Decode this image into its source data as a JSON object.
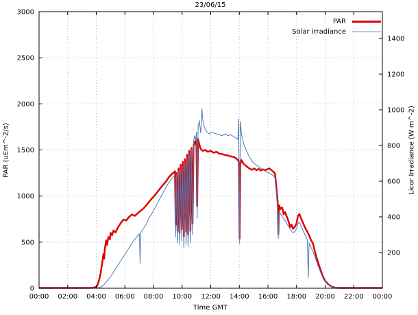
{
  "chart_data": {
    "type": "line",
    "title": "23/06/15",
    "xlabel": "Time GMT",
    "ylabel": "PAR (uEm^-2/s)",
    "y2label": "Licor Irradiance (W m^-2)",
    "grid": true,
    "legend_position": "top-right-inside",
    "background": "#ffffff",
    "grid_color": "#bbbbbb",
    "border_color": "#000000",
    "x_range": [
      0,
      24
    ],
    "y_range": [
      0,
      3000
    ],
    "y2_range": [
      0,
      1550
    ],
    "x_ticks": [
      {
        "v": 0,
        "label": "00:00"
      },
      {
        "v": 2,
        "label": "02:00"
      },
      {
        "v": 4,
        "label": "04:00"
      },
      {
        "v": 6,
        "label": "06:00"
      },
      {
        "v": 8,
        "label": "08:00"
      },
      {
        "v": 10,
        "label": "10:00"
      },
      {
        "v": 12,
        "label": "12:00"
      },
      {
        "v": 14,
        "label": "14:00"
      },
      {
        "v": 16,
        "label": "16:00"
      },
      {
        "v": 18,
        "label": "18:00"
      },
      {
        "v": 20,
        "label": "20:00"
      },
      {
        "v": 22,
        "label": "22:00"
      },
      {
        "v": 24,
        "label": "00:00"
      }
    ],
    "y_ticks": [
      0,
      500,
      1000,
      1500,
      2000,
      2500,
      3000
    ],
    "y2_ticks": [
      200,
      400,
      600,
      800,
      1000,
      1200,
      1400
    ],
    "series": [
      {
        "name": "PAR",
        "color": "#dd0000",
        "width": 2.5,
        "axis": "y1",
        "points": [
          [
            0,
            4
          ],
          [
            0.5,
            4
          ],
          [
            1,
            4
          ],
          [
            1.5,
            4
          ],
          [
            2,
            4
          ],
          [
            2.5,
            4
          ],
          [
            3,
            4
          ],
          [
            3.5,
            4
          ],
          [
            3.8,
            6
          ],
          [
            4,
            15
          ],
          [
            4.1,
            40
          ],
          [
            4.2,
            90
          ],
          [
            4.3,
            160
          ],
          [
            4.4,
            260
          ],
          [
            4.5,
            370
          ],
          [
            4.55,
            320
          ],
          [
            4.6,
            430
          ],
          [
            4.7,
            520
          ],
          [
            4.75,
            470
          ],
          [
            4.85,
            555
          ],
          [
            4.95,
            530
          ],
          [
            5,
            600
          ],
          [
            5.1,
            575
          ],
          [
            5.2,
            625
          ],
          [
            5.35,
            605
          ],
          [
            5.5,
            655
          ],
          [
            5.7,
            705
          ],
          [
            5.9,
            745
          ],
          [
            6.1,
            735
          ],
          [
            6.3,
            775
          ],
          [
            6.5,
            800
          ],
          [
            6.7,
            785
          ],
          [
            6.9,
            815
          ],
          [
            7.1,
            840
          ],
          [
            7.3,
            865
          ],
          [
            7.5,
            900
          ],
          [
            7.7,
            940
          ],
          [
            7.9,
            975
          ],
          [
            8.1,
            1010
          ],
          [
            8.3,
            1050
          ],
          [
            8.5,
            1090
          ],
          [
            8.7,
            1125
          ],
          [
            8.9,
            1165
          ],
          [
            9.1,
            1210
          ],
          [
            9.3,
            1240
          ],
          [
            9.45,
            1260
          ],
          [
            9.5,
            1270
          ],
          [
            9.55,
            690
          ],
          [
            9.6,
            1250
          ],
          [
            9.68,
            620
          ],
          [
            9.75,
            1300
          ],
          [
            9.82,
            600
          ],
          [
            9.9,
            1340
          ],
          [
            9.98,
            640
          ],
          [
            10.05,
            1370
          ],
          [
            10.12,
            560
          ],
          [
            10.2,
            1400
          ],
          [
            10.28,
            610
          ],
          [
            10.35,
            1450
          ],
          [
            10.42,
            580
          ],
          [
            10.5,
            1490
          ],
          [
            10.58,
            620
          ],
          [
            10.65,
            1520
          ],
          [
            10.73,
            700
          ],
          [
            10.8,
            1550
          ],
          [
            10.88,
            1590
          ],
          [
            10.95,
            1560
          ],
          [
            11,
            1610
          ],
          [
            11.05,
            890
          ],
          [
            11.12,
            1620
          ],
          [
            11.2,
            1560
          ],
          [
            11.3,
            1510
          ],
          [
            11.45,
            1490
          ],
          [
            11.6,
            1500
          ],
          [
            11.8,
            1480
          ],
          [
            12,
            1490
          ],
          [
            12.2,
            1470
          ],
          [
            12.4,
            1480
          ],
          [
            12.6,
            1460
          ],
          [
            12.8,
            1455
          ],
          [
            13,
            1445
          ],
          [
            13.2,
            1440
          ],
          [
            13.4,
            1430
          ],
          [
            13.6,
            1425
          ],
          [
            13.8,
            1405
          ],
          [
            13.9,
            1390
          ],
          [
            13.97,
            1370
          ],
          [
            14.02,
            540
          ],
          [
            14.07,
            1340
          ],
          [
            14.15,
            1390
          ],
          [
            14.3,
            1350
          ],
          [
            14.45,
            1330
          ],
          [
            14.6,
            1310
          ],
          [
            14.75,
            1295
          ],
          [
            14.9,
            1285
          ],
          [
            15.05,
            1300
          ],
          [
            15.2,
            1280
          ],
          [
            15.35,
            1295
          ],
          [
            15.5,
            1275
          ],
          [
            15.65,
            1290
          ],
          [
            15.8,
            1280
          ],
          [
            15.95,
            1290
          ],
          [
            16.1,
            1300
          ],
          [
            16.25,
            1280
          ],
          [
            16.4,
            1260
          ],
          [
            16.5,
            1240
          ],
          [
            16.6,
            1080
          ],
          [
            16.68,
            940
          ],
          [
            16.73,
            590
          ],
          [
            16.78,
            900
          ],
          [
            16.88,
            860
          ],
          [
            17,
            875
          ],
          [
            17.1,
            800
          ],
          [
            17.2,
            825
          ],
          [
            17.3,
            785
          ],
          [
            17.45,
            720
          ],
          [
            17.55,
            665
          ],
          [
            17.65,
            690
          ],
          [
            17.75,
            645
          ],
          [
            17.9,
            670
          ],
          [
            18,
            705
          ],
          [
            18.1,
            785
          ],
          [
            18.2,
            805
          ],
          [
            18.3,
            765
          ],
          [
            18.45,
            710
          ],
          [
            18.6,
            655
          ],
          [
            18.75,
            615
          ],
          [
            18.9,
            565
          ],
          [
            19,
            525
          ],
          [
            19.15,
            485
          ],
          [
            19.25,
            420
          ],
          [
            19.4,
            330
          ],
          [
            19.55,
            260
          ],
          [
            19.7,
            190
          ],
          [
            19.85,
            125
          ],
          [
            20,
            80
          ],
          [
            20.2,
            45
          ],
          [
            20.45,
            18
          ],
          [
            20.7,
            6
          ],
          [
            21,
            4
          ],
          [
            21.5,
            4
          ],
          [
            22,
            4
          ],
          [
            22.5,
            4
          ],
          [
            23,
            4
          ],
          [
            23.5,
            4
          ],
          [
            24,
            4
          ]
        ]
      },
      {
        "name": "Solar irradiance",
        "color": "#4a7ab5",
        "width": 1,
        "axis": "y2",
        "points": [
          [
            0,
            2
          ],
          [
            0.5,
            2
          ],
          [
            1,
            2
          ],
          [
            1.5,
            2
          ],
          [
            2,
            2
          ],
          [
            2.5,
            2
          ],
          [
            3,
            2
          ],
          [
            3.5,
            2
          ],
          [
            4,
            2
          ],
          [
            4.2,
            4
          ],
          [
            4.4,
            10
          ],
          [
            4.6,
            25
          ],
          [
            4.8,
            45
          ],
          [
            5,
            65
          ],
          [
            5.2,
            90
          ],
          [
            5.4,
            115
          ],
          [
            5.6,
            140
          ],
          [
            5.8,
            165
          ],
          [
            6,
            190
          ],
          [
            6.2,
            215
          ],
          [
            6.4,
            240
          ],
          [
            6.6,
            265
          ],
          [
            6.8,
            285
          ],
          [
            6.95,
            300
          ],
          [
            7.02,
            305
          ],
          [
            7.06,
            140
          ],
          [
            7.1,
            310
          ],
          [
            7.3,
            335
          ],
          [
            7.5,
            360
          ],
          [
            7.7,
            395
          ],
          [
            7.9,
            420
          ],
          [
            8.1,
            450
          ],
          [
            8.3,
            480
          ],
          [
            8.5,
            510
          ],
          [
            8.7,
            540
          ],
          [
            8.9,
            570
          ],
          [
            9.1,
            595
          ],
          [
            9.3,
            615
          ],
          [
            9.45,
            630
          ],
          [
            9.5,
            645
          ],
          [
            9.55,
            290
          ],
          [
            9.6,
            635
          ],
          [
            9.68,
            255
          ],
          [
            9.75,
            655
          ],
          [
            9.82,
            245
          ],
          [
            9.9,
            665
          ],
          [
            9.98,
            265
          ],
          [
            10.05,
            685
          ],
          [
            10.12,
            225
          ],
          [
            10.2,
            700
          ],
          [
            10.28,
            245
          ],
          [
            10.35,
            725
          ],
          [
            10.42,
            235
          ],
          [
            10.5,
            750
          ],
          [
            10.58,
            255
          ],
          [
            10.65,
            780
          ],
          [
            10.73,
            300
          ],
          [
            10.8,
            825
          ],
          [
            10.88,
            855
          ],
          [
            10.95,
            830
          ],
          [
            11,
            875
          ],
          [
            11.05,
            390
          ],
          [
            11.12,
            905
          ],
          [
            11.2,
            940
          ],
          [
            11.3,
            870
          ],
          [
            11.38,
            1005
          ],
          [
            11.45,
            940
          ],
          [
            11.55,
            905
          ],
          [
            11.65,
            885
          ],
          [
            11.75,
            875
          ],
          [
            11.9,
            865
          ],
          [
            12.05,
            875
          ],
          [
            12.2,
            870
          ],
          [
            12.4,
            865
          ],
          [
            12.6,
            860
          ],
          [
            12.8,
            855
          ],
          [
            13,
            865
          ],
          [
            13.2,
            855
          ],
          [
            13.4,
            860
          ],
          [
            13.6,
            850
          ],
          [
            13.8,
            840
          ],
          [
            13.9,
            835
          ],
          [
            13.95,
            950
          ],
          [
            14.02,
            250
          ],
          [
            14.07,
            935
          ],
          [
            14.15,
            865
          ],
          [
            14.3,
            810
          ],
          [
            14.5,
            770
          ],
          [
            14.7,
            735
          ],
          [
            14.9,
            710
          ],
          [
            15.1,
            695
          ],
          [
            15.3,
            685
          ],
          [
            15.5,
            672
          ],
          [
            15.7,
            662
          ],
          [
            15.9,
            652
          ],
          [
            16.1,
            645
          ],
          [
            16.3,
            635
          ],
          [
            16.45,
            625
          ],
          [
            16.5,
            615
          ],
          [
            16.6,
            520
          ],
          [
            16.68,
            445
          ],
          [
            16.73,
            280
          ],
          [
            16.78,
            430
          ],
          [
            16.9,
            415
          ],
          [
            17,
            400
          ],
          [
            17.15,
            385
          ],
          [
            17.3,
            365
          ],
          [
            17.45,
            345
          ],
          [
            17.6,
            325
          ],
          [
            17.75,
            312
          ],
          [
            17.9,
            318
          ],
          [
            18,
            335
          ],
          [
            18.1,
            362
          ],
          [
            18.2,
            372
          ],
          [
            18.3,
            352
          ],
          [
            18.45,
            325
          ],
          [
            18.6,
            298
          ],
          [
            18.75,
            272
          ],
          [
            18.82,
            60
          ],
          [
            18.88,
            255
          ],
          [
            19,
            232
          ],
          [
            19.15,
            205
          ],
          [
            19.3,
            172
          ],
          [
            19.45,
            138
          ],
          [
            19.6,
            105
          ],
          [
            19.75,
            75
          ],
          [
            19.9,
            48
          ],
          [
            20.1,
            28
          ],
          [
            20.3,
            14
          ],
          [
            20.55,
            6
          ],
          [
            20.8,
            3
          ],
          [
            21.2,
            2
          ],
          [
            22,
            2
          ],
          [
            23,
            2
          ],
          [
            24,
            2
          ]
        ]
      }
    ]
  }
}
